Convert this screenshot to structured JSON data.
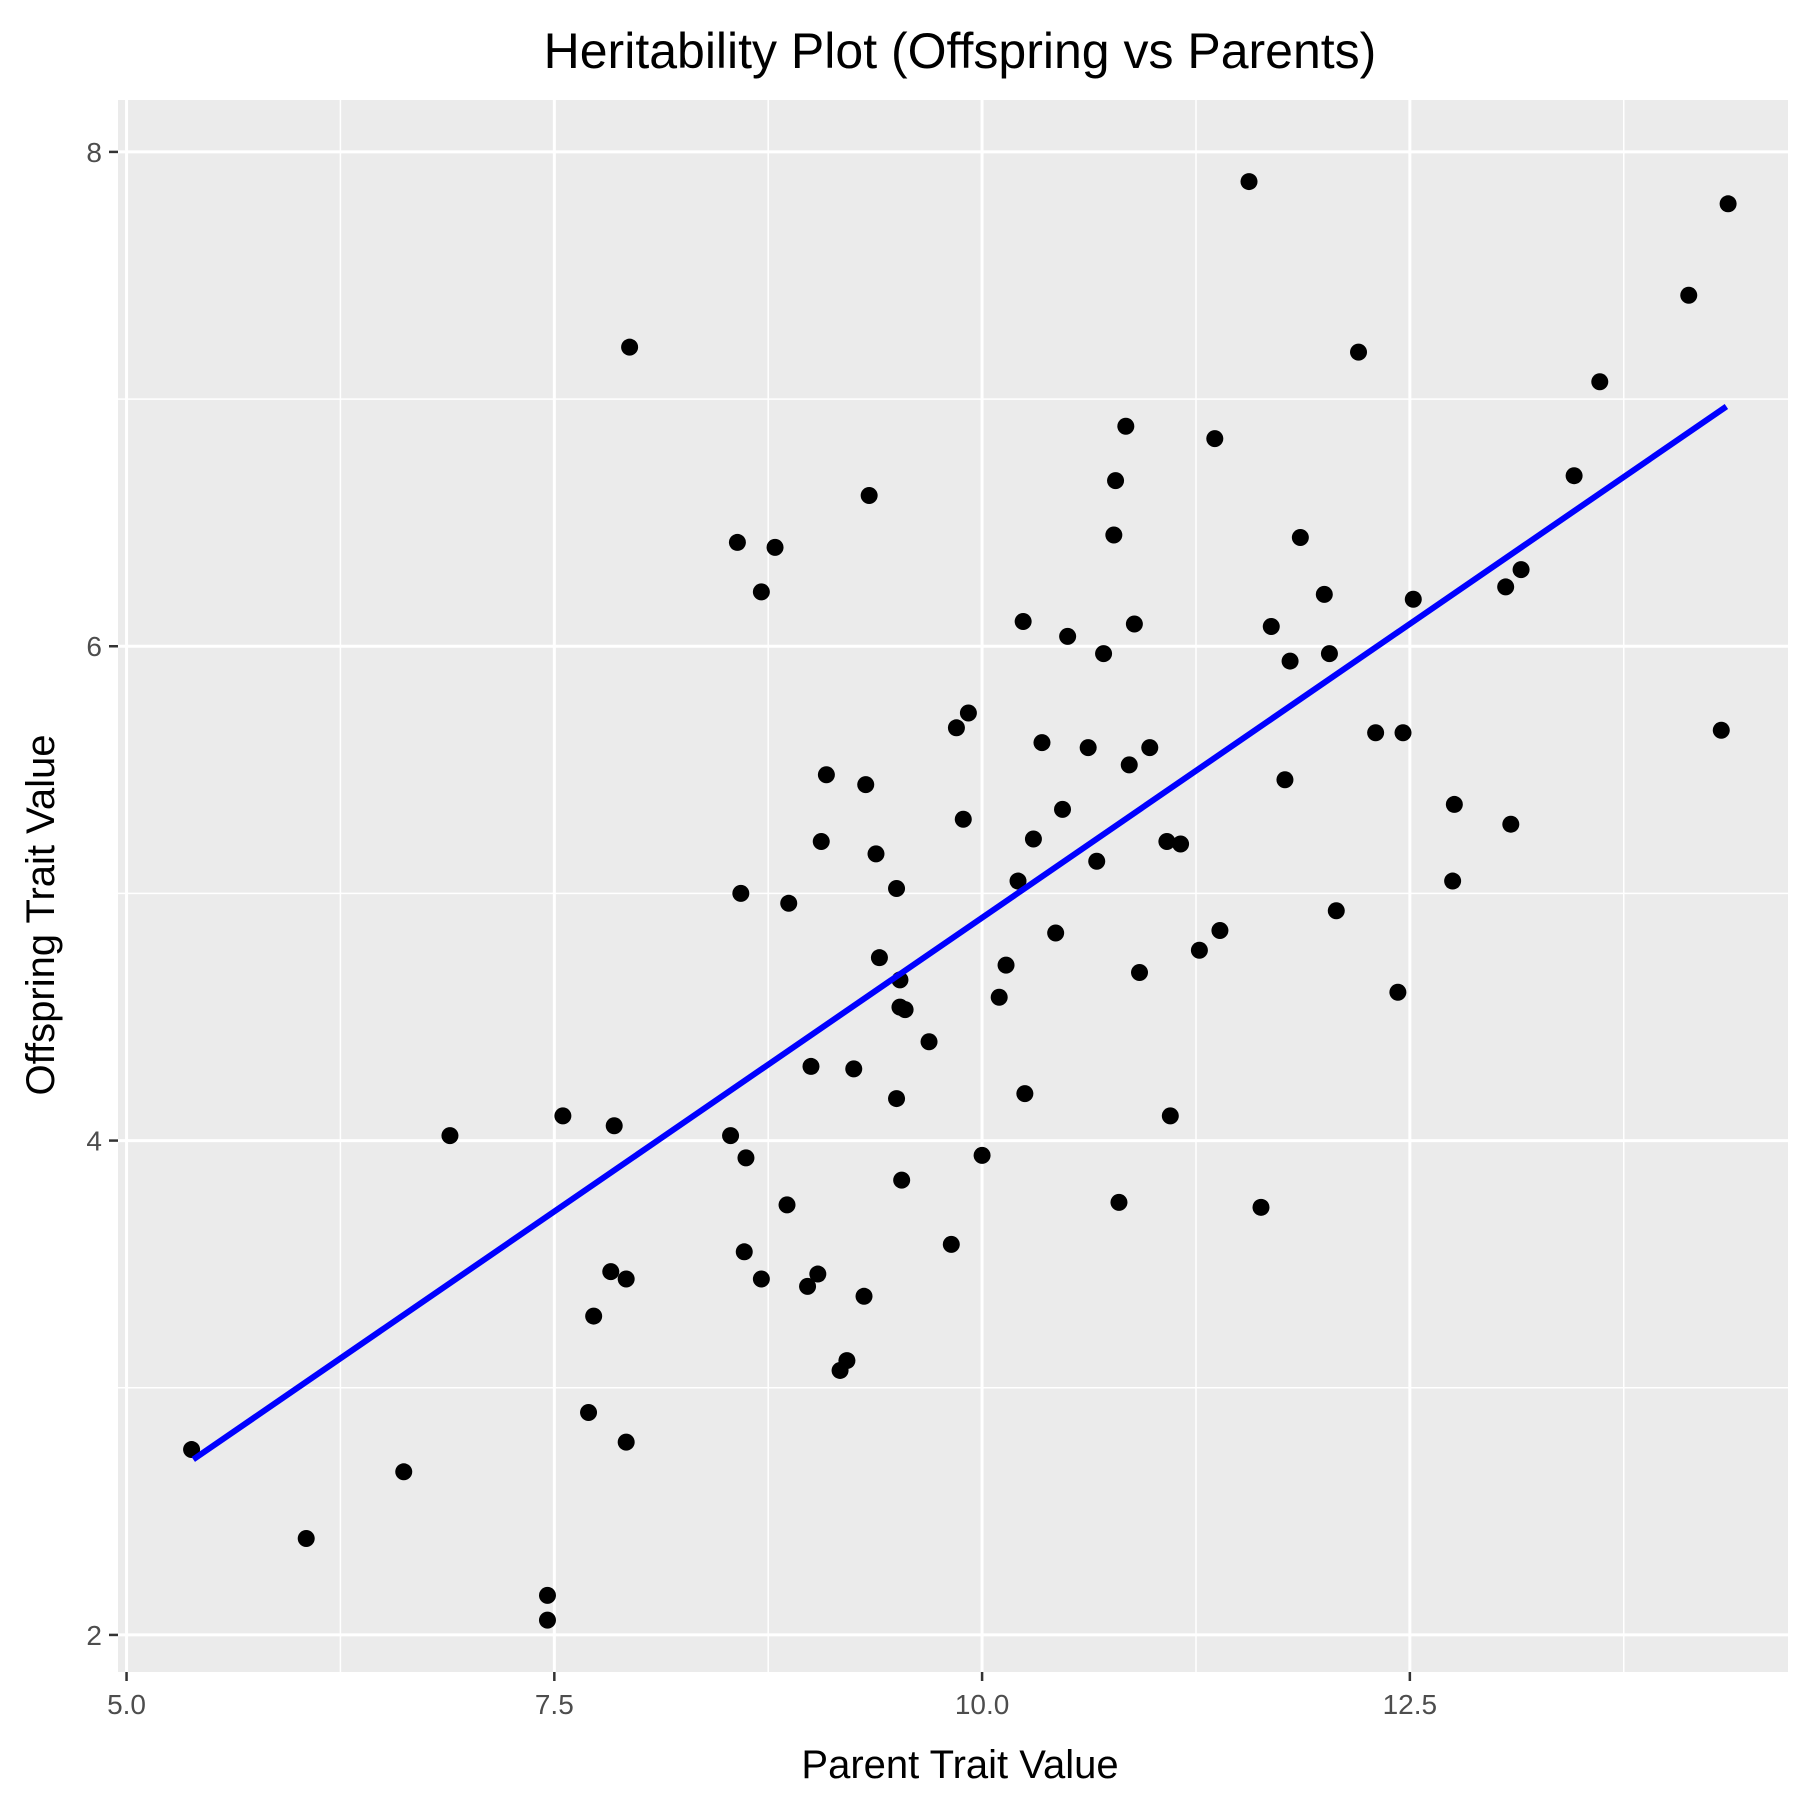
{
  "chart_data": {
    "type": "scatter",
    "title": "Heritability Plot (Offspring vs Parents)",
    "xlabel": "Parent Trait Value",
    "ylabel": "Offspring Trait Value",
    "xlim": [
      4.95,
      14.71
    ],
    "ylim": [
      1.85,
      8.21
    ],
    "x_ticks": [
      5.0,
      7.5,
      10.0,
      12.5
    ],
    "x_tick_labels": [
      "5.0",
      "7.5",
      "10.0",
      "12.5"
    ],
    "y_ticks": [
      2,
      4,
      6,
      8
    ],
    "y_tick_labels": [
      "2",
      "4",
      "6",
      "8"
    ],
    "x_minor_ticks": [
      6.25,
      8.75,
      11.25,
      13.75
    ],
    "y_minor_ticks": [
      3,
      5,
      7
    ],
    "grid": true,
    "background": "#ebebeb",
    "point_color": "#000000",
    "line_color": "#0000ff",
    "fit_line": {
      "x": [
        5.39,
        14.35
      ],
      "y": [
        2.71,
        6.97
      ]
    },
    "points": [
      [
        5.38,
        2.75
      ],
      [
        6.05,
        2.39
      ],
      [
        6.62,
        2.66
      ],
      [
        6.89,
        4.02
      ],
      [
        7.46,
        2.16
      ],
      [
        7.46,
        2.06
      ],
      [
        7.55,
        4.1
      ],
      [
        7.7,
        2.9
      ],
      [
        7.73,
        3.29
      ],
      [
        7.83,
        3.47
      ],
      [
        7.85,
        4.06
      ],
      [
        7.92,
        3.44
      ],
      [
        7.92,
        2.78
      ],
      [
        7.94,
        7.21
      ],
      [
        8.53,
        4.02
      ],
      [
        8.57,
        6.42
      ],
      [
        8.59,
        5.0
      ],
      [
        8.61,
        3.55
      ],
      [
        8.62,
        3.93
      ],
      [
        8.71,
        6.22
      ],
      [
        8.71,
        3.44
      ],
      [
        8.79,
        6.4
      ],
      [
        8.86,
        3.74
      ],
      [
        8.87,
        4.96
      ],
      [
        8.98,
        3.41
      ],
      [
        9.0,
        4.3
      ],
      [
        9.04,
        3.46
      ],
      [
        9.06,
        5.21
      ],
      [
        9.09,
        5.48
      ],
      [
        9.17,
        3.07
      ],
      [
        9.21,
        3.11
      ],
      [
        9.25,
        4.29
      ],
      [
        9.31,
        3.37
      ],
      [
        9.32,
        5.44
      ],
      [
        9.34,
        6.61
      ],
      [
        9.38,
        5.16
      ],
      [
        9.4,
        4.74
      ],
      [
        9.5,
        5.02
      ],
      [
        9.5,
        4.17
      ],
      [
        9.52,
        4.65
      ],
      [
        9.52,
        4.54
      ],
      [
        9.53,
        3.84
      ],
      [
        9.55,
        4.53
      ],
      [
        9.69,
        4.4
      ],
      [
        9.82,
        3.58
      ],
      [
        9.85,
        5.67
      ],
      [
        9.89,
        5.3
      ],
      [
        9.92,
        5.73
      ],
      [
        10.0,
        3.94
      ],
      [
        10.1,
        4.58
      ],
      [
        10.14,
        4.71
      ],
      [
        10.21,
        5.05
      ],
      [
        10.24,
        6.1
      ],
      [
        10.25,
        4.19
      ],
      [
        10.3,
        5.22
      ],
      [
        10.35,
        5.61
      ],
      [
        10.43,
        4.84
      ],
      [
        10.47,
        5.34
      ],
      [
        10.5,
        6.04
      ],
      [
        10.62,
        5.59
      ],
      [
        10.67,
        5.13
      ],
      [
        10.71,
        5.97
      ],
      [
        10.77,
        6.45
      ],
      [
        10.78,
        6.67
      ],
      [
        10.8,
        3.75
      ],
      [
        10.84,
        6.89
      ],
      [
        10.86,
        5.52
      ],
      [
        10.89,
        6.09
      ],
      [
        10.92,
        4.68
      ],
      [
        10.98,
        5.59
      ],
      [
        11.08,
        5.21
      ],
      [
        11.1,
        4.1
      ],
      [
        11.16,
        5.2
      ],
      [
        11.27,
        4.77
      ],
      [
        11.36,
        6.84
      ],
      [
        11.39,
        4.85
      ],
      [
        11.56,
        7.88
      ],
      [
        11.63,
        3.73
      ],
      [
        11.69,
        6.08
      ],
      [
        11.77,
        5.46
      ],
      [
        11.8,
        5.94
      ],
      [
        11.86,
        6.44
      ],
      [
        12.0,
        6.21
      ],
      [
        12.03,
        5.97
      ],
      [
        12.07,
        4.93
      ],
      [
        12.2,
        7.19
      ],
      [
        12.3,
        5.65
      ],
      [
        12.43,
        4.6
      ],
      [
        12.46,
        5.65
      ],
      [
        12.52,
        6.19
      ],
      [
        12.75,
        5.05
      ],
      [
        12.76,
        5.36
      ],
      [
        13.06,
        6.24
      ],
      [
        13.09,
        5.28
      ],
      [
        13.15,
        6.31
      ],
      [
        13.46,
        6.69
      ],
      [
        13.61,
        7.07
      ],
      [
        14.13,
        7.42
      ],
      [
        14.32,
        5.66
      ],
      [
        14.36,
        7.79
      ]
    ]
  }
}
